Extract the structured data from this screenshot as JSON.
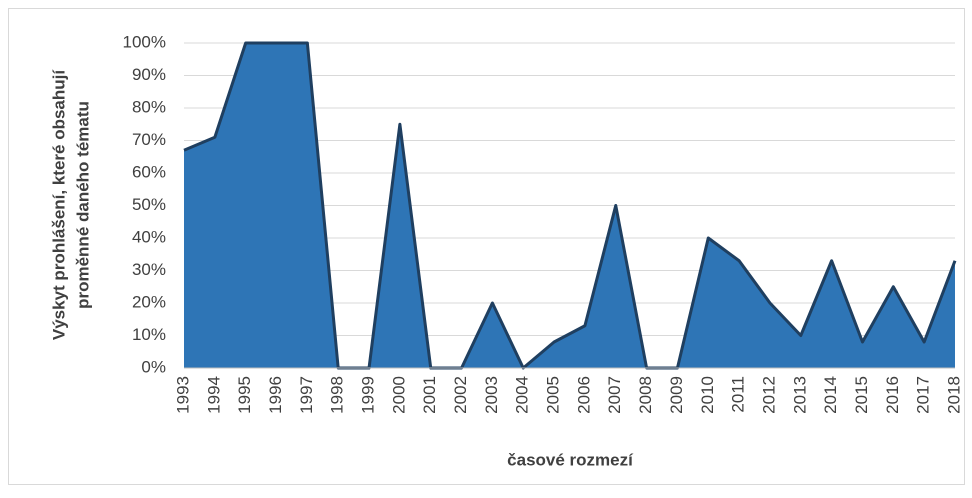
{
  "chart_data": {
    "type": "area",
    "y_label": [
      "Výskyt prohlášení, které obsahují",
      "proměnné daného tématu"
    ],
    "x_label": "časové rozmezí",
    "categories": [
      "1993",
      "1994",
      "1995",
      "1996",
      "1997",
      "1998",
      "1999",
      "2000",
      "2001",
      "2002",
      "2003",
      "2004",
      "2005",
      "2006",
      "2007",
      "2008",
      "2009",
      "2010",
      "2011",
      "2012",
      "2013",
      "2014",
      "2015",
      "2016",
      "2017",
      "2018"
    ],
    "values": [
      67,
      71,
      100,
      100,
      100,
      0,
      0,
      75,
      0,
      0,
      20,
      0,
      8,
      13,
      50,
      0,
      0,
      40,
      33,
      20,
      10,
      33,
      8,
      25,
      8,
      33
    ],
    "color": "#2e75b6",
    "line_color": "#1f3f60",
    "ylim": [
      0,
      100
    ],
    "yticks": [
      {
        "value": 0,
        "label": "0%"
      },
      {
        "value": 10,
        "label": "10%"
      },
      {
        "value": 20,
        "label": "20%"
      },
      {
        "value": 30,
        "label": "30%"
      },
      {
        "value": 40,
        "label": "40%"
      },
      {
        "value": 50,
        "label": "50%"
      },
      {
        "value": 60,
        "label": "60%"
      },
      {
        "value": 70,
        "label": "70%"
      },
      {
        "value": 80,
        "label": "80%"
      },
      {
        "value": 90,
        "label": "90%"
      },
      {
        "value": 100,
        "label": "100%"
      }
    ],
    "grid": true
  }
}
